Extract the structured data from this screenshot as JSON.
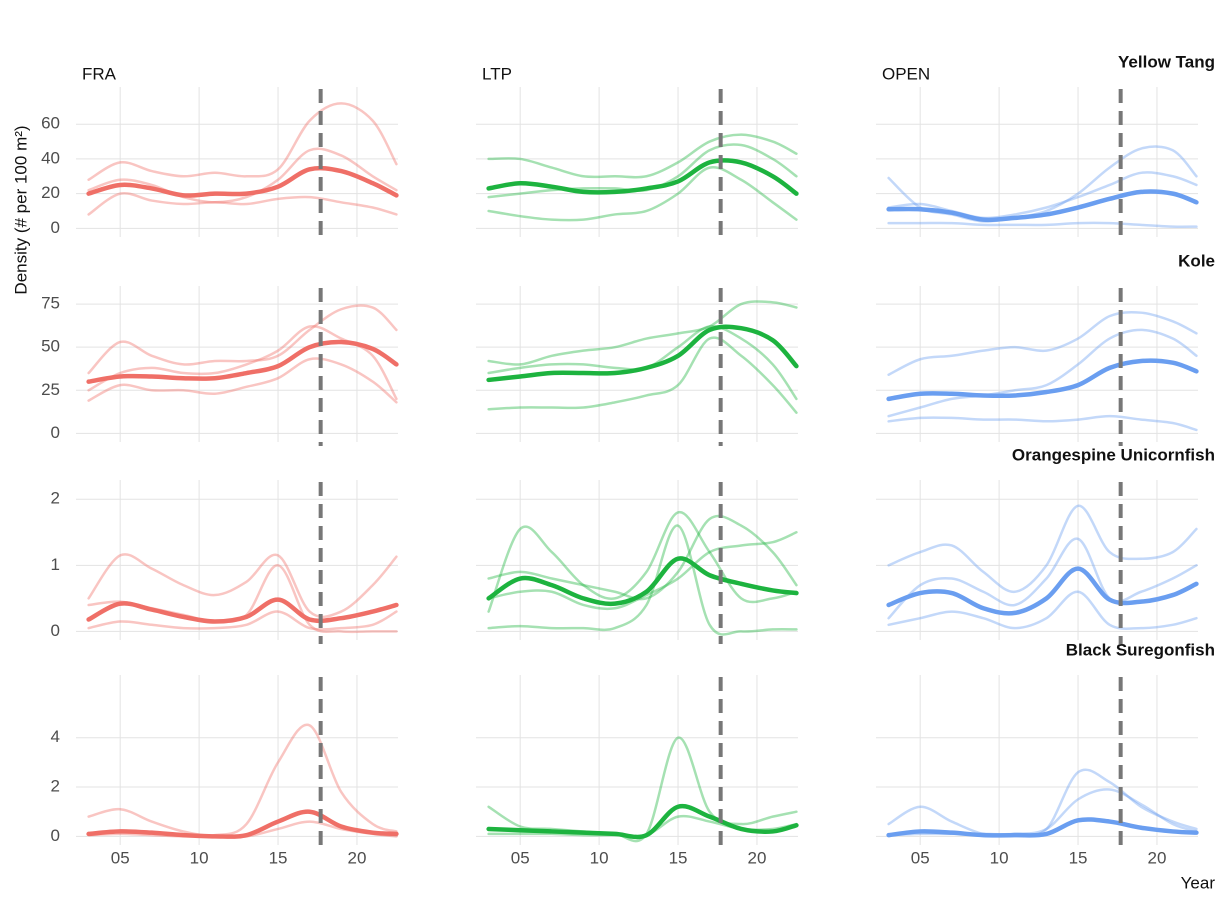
{
  "chart_data": [
    {
      "type": "line",
      "column": "FRA",
      "row": "Yellow Tang",
      "y_label": "Density (# per 100 m²)",
      "color": "#ef6f67",
      "x": [
        3,
        5,
        7,
        9,
        11,
        13,
        15,
        17,
        19,
        21,
        22.5
      ],
      "xlim": [
        2.2,
        22.6
      ],
      "xticks": [
        {
          "value": 5,
          "label": "05"
        },
        10,
        15,
        20
      ],
      "ylim": [
        -5,
        78
      ],
      "yticks": [
        0,
        20,
        40,
        60
      ],
      "vline": 17.7,
      "values": [
        20,
        25,
        23,
        19,
        20,
        20,
        24,
        34,
        33,
        26,
        19
      ],
      "series": [
        {
          "values": [
            28,
            38,
            33,
            30,
            32,
            30,
            34,
            62,
            72,
            62,
            37
          ]
        },
        {
          "values": [
            8,
            20,
            16,
            14,
            15,
            14,
            17,
            18,
            15,
            12,
            8
          ]
        },
        {
          "values": [
            22,
            28,
            25,
            18,
            15,
            18,
            28,
            45,
            42,
            30,
            22
          ]
        }
      ]
    },
    {
      "type": "line",
      "column": "LTP",
      "color": "#1db33f",
      "x": [
        3,
        5,
        7,
        9,
        11,
        13,
        15,
        17,
        19,
        21,
        22.5
      ],
      "xlim": [
        2.2,
        22.6
      ],
      "xticks": [
        {
          "value": 5,
          "label": "05"
        },
        10,
        15,
        20
      ],
      "ylim": [
        -5,
        78
      ],
      "yticks": [
        0,
        20,
        40,
        60
      ],
      "vline": 17.7,
      "values": [
        23,
        26,
        24,
        21,
        21,
        23,
        27,
        38,
        38,
        30,
        20
      ],
      "series": [
        {
          "values": [
            40,
            40,
            35,
            30,
            30,
            30,
            38,
            50,
            54,
            50,
            43
          ]
        },
        {
          "values": [
            10,
            7,
            5,
            5,
            8,
            10,
            20,
            35,
            28,
            15,
            5
          ]
        },
        {
          "values": [
            18,
            20,
            22,
            23,
            23,
            22,
            30,
            45,
            48,
            40,
            30
          ]
        }
      ]
    },
    {
      "type": "line",
      "column": "OPEN",
      "color": "#6a9ef0",
      "x": [
        3,
        5,
        7,
        9,
        11,
        13,
        15,
        17,
        19,
        21,
        22.5
      ],
      "xlim": [
        2.2,
        22.6
      ],
      "xticks": [
        {
          "value": 5,
          "label": "05"
        },
        10,
        15,
        20
      ],
      "ylim": [
        -5,
        78
      ],
      "yticks": [
        0,
        20,
        40,
        60
      ],
      "vline": 17.7,
      "values": [
        11,
        11,
        9,
        5,
        6,
        8,
        12,
        17,
        21,
        20,
        15
      ],
      "series": [
        {
          "values": [
            29,
            12,
            8,
            4,
            6,
            10,
            20,
            35,
            46,
            45,
            30
          ]
        },
        {
          "values": [
            3,
            3,
            3,
            2,
            2,
            2,
            3,
            3,
            2,
            1,
            1
          ]
        },
        {
          "values": [
            12,
            14,
            10,
            6,
            8,
            12,
            18,
            25,
            32,
            30,
            25
          ]
        }
      ]
    },
    {
      "type": "line",
      "row": "Kole",
      "color": "#ef6f67",
      "x": [
        3,
        5,
        7,
        9,
        11,
        13,
        15,
        17,
        19,
        21,
        22.5
      ],
      "xlim": [
        2.2,
        22.6
      ],
      "xticks": [
        {
          "value": 5,
          "label": "05"
        },
        10,
        15,
        20
      ],
      "ylim": [
        -5,
        82
      ],
      "yticks": [
        0,
        25,
        50,
        75
      ],
      "vline": 17.7,
      "values": [
        30,
        33,
        33,
        32,
        32,
        35,
        39,
        50,
        53,
        49,
        40
      ],
      "series": [
        {
          "values": [
            35,
            53,
            45,
            40,
            42,
            42,
            45,
            60,
            72,
            73,
            60
          ]
        },
        {
          "values": [
            19,
            28,
            25,
            25,
            23,
            27,
            32,
            43,
            40,
            30,
            18
          ]
        },
        {
          "values": [
            25,
            35,
            38,
            35,
            35,
            40,
            48,
            62,
            55,
            45,
            20
          ]
        }
      ]
    },
    {
      "type": "line",
      "color": "#1db33f",
      "x": [
        3,
        5,
        7,
        9,
        11,
        13,
        15,
        17,
        19,
        21,
        22.5
      ],
      "xlim": [
        2.2,
        22.6
      ],
      "xticks": [
        {
          "value": 5,
          "label": "05"
        },
        10,
        15,
        20
      ],
      "ylim": [
        -5,
        82
      ],
      "yticks": [
        0,
        25,
        50,
        75
      ],
      "vline": 17.7,
      "values": [
        31,
        33,
        35,
        35,
        35,
        38,
        45,
        60,
        61,
        54,
        39
      ],
      "series": [
        {
          "values": [
            42,
            40,
            45,
            48,
            50,
            55,
            58,
            62,
            75,
            76,
            73
          ]
        },
        {
          "values": [
            14,
            15,
            15,
            15,
            18,
            22,
            28,
            55,
            45,
            28,
            12
          ]
        },
        {
          "values": [
            35,
            38,
            40,
            40,
            38,
            38,
            50,
            62,
            55,
            40,
            20
          ]
        }
      ]
    },
    {
      "type": "line",
      "color": "#6a9ef0",
      "x": [
        3,
        5,
        7,
        9,
        11,
        13,
        15,
        17,
        19,
        21,
        22.5
      ],
      "xlim": [
        2.2,
        22.6
      ],
      "xticks": [
        {
          "value": 5,
          "label": "05"
        },
        10,
        15,
        20
      ],
      "ylim": [
        -5,
        82
      ],
      "yticks": [
        0,
        25,
        50,
        75
      ],
      "vline": 17.7,
      "values": [
        20,
        23,
        23,
        22,
        22,
        24,
        28,
        38,
        42,
        41,
        36
      ],
      "series": [
        {
          "values": [
            34,
            43,
            45,
            48,
            50,
            48,
            55,
            68,
            70,
            65,
            58
          ]
        },
        {
          "values": [
            7,
            9,
            9,
            8,
            8,
            7,
            8,
            10,
            8,
            6,
            2
          ]
        },
        {
          "values": [
            10,
            15,
            20,
            22,
            25,
            28,
            40,
            55,
            60,
            55,
            45
          ]
        }
      ]
    },
    {
      "type": "line",
      "row": "Orangespine Unicornfish",
      "color": "#ef6f67",
      "x": [
        3,
        5,
        7,
        9,
        11,
        13,
        15,
        17,
        19,
        21,
        22.5
      ],
      "xlim": [
        2.2,
        22.6
      ],
      "xticks": [
        {
          "value": 5,
          "label": "05"
        },
        10,
        15,
        20
      ],
      "ylim": [
        -0.13,
        2.2
      ],
      "yticks": [
        0,
        1,
        2
      ],
      "vline": 17.7,
      "values": [
        0.18,
        0.42,
        0.33,
        0.22,
        0.15,
        0.22,
        0.48,
        0.18,
        0.2,
        0.3,
        0.4
      ],
      "series": [
        {
          "values": [
            0.5,
            1.15,
            0.95,
            0.7,
            0.55,
            0.75,
            1.15,
            0.3,
            0.3,
            0.7,
            1.13
          ]
        },
        {
          "values": [
            0.05,
            0.15,
            0.1,
            0.05,
            0.05,
            0.1,
            0.3,
            0.05,
            0.05,
            0.1,
            0.3
          ]
        },
        {
          "values": [
            0.4,
            0.45,
            0.35,
            0.25,
            0.15,
            0.25,
            1.0,
            0.1,
            0,
            0,
            0
          ]
        }
      ]
    },
    {
      "type": "line",
      "color": "#1db33f",
      "x": [
        3,
        5,
        7,
        9,
        11,
        13,
        15,
        17,
        19,
        21,
        22.5
      ],
      "xlim": [
        2.2,
        22.6
      ],
      "xticks": [
        {
          "value": 5,
          "label": "05"
        },
        10,
        15,
        20
      ],
      "ylim": [
        -0.13,
        2.2
      ],
      "yticks": [
        0,
        1,
        2
      ],
      "vline": 17.7,
      "values": [
        0.5,
        0.8,
        0.7,
        0.5,
        0.42,
        0.6,
        1.1,
        0.85,
        0.72,
        0.62,
        0.58
      ],
      "series": [
        {
          "values": [
            0.3,
            1.55,
            1.2,
            0.7,
            0.5,
            0.9,
            1.8,
            1.2,
            0.5,
            0.5,
            0.6
          ]
        },
        {
          "values": [
            0.05,
            0.08,
            0.05,
            0.05,
            0.05,
            0.4,
            1.6,
            0.1,
            0,
            0.03,
            0.03
          ]
        },
        {
          "values": [
            0.8,
            0.9,
            0.8,
            0.7,
            0.6,
            0.5,
            0.9,
            1.7,
            1.6,
            1.2,
            0.7
          ]
        },
        {
          "values": [
            0.5,
            0.6,
            0.6,
            0.4,
            0.35,
            0.55,
            0.8,
            1.2,
            1.3,
            1.35,
            1.5
          ]
        }
      ]
    },
    {
      "type": "line",
      "color": "#6a9ef0",
      "x": [
        3,
        5,
        7,
        9,
        11,
        13,
        15,
        17,
        19,
        21,
        22.5
      ],
      "xlim": [
        2.2,
        22.6
      ],
      "xticks": [
        {
          "value": 5,
          "label": "05"
        },
        10,
        15,
        20
      ],
      "ylim": [
        -0.13,
        2.2
      ],
      "yticks": [
        0,
        1,
        2
      ],
      "vline": 17.7,
      "values": [
        0.4,
        0.58,
        0.58,
        0.35,
        0.28,
        0.5,
        0.95,
        0.48,
        0.45,
        0.55,
        0.72
      ],
      "series": [
        {
          "values": [
            1.0,
            1.2,
            1.3,
            0.9,
            0.6,
            1.0,
            1.9,
            1.2,
            1.1,
            1.2,
            1.55
          ]
        },
        {
          "values": [
            0.1,
            0.2,
            0.3,
            0.2,
            0.05,
            0.2,
            0.6,
            0.1,
            0.05,
            0.1,
            0.2
          ]
        },
        {
          "values": [
            0.2,
            0.7,
            0.8,
            0.6,
            0.4,
            0.8,
            1.4,
            0.5,
            0.6,
            0.8,
            1.0
          ]
        }
      ]
    },
    {
      "type": "line",
      "row": "Black Suregonfish",
      "color": "#ef6f67",
      "x": [
        3,
        5,
        7,
        9,
        11,
        13,
        15,
        17,
        19,
        21,
        22.5
      ],
      "xlim": [
        2.2,
        22.6
      ],
      "xticks": [
        {
          "value": 5,
          "label": "05"
        },
        10,
        15,
        20
      ],
      "ylim": [
        -0.35,
        6.3
      ],
      "yticks": [
        0,
        2,
        4
      ],
      "vline": 17.7,
      "values": [
        0.1,
        0.2,
        0.15,
        0.05,
        0,
        0.05,
        0.6,
        1.0,
        0.4,
        0.15,
        0.1
      ],
      "series": [
        {
          "values": [
            0.8,
            1.1,
            0.6,
            0.2,
            0.05,
            0.5,
            3.0,
            4.5,
            1.8,
            0.5,
            0.2
          ]
        },
        {
          "values": [
            0.05,
            0.1,
            0.05,
            0,
            0,
            0,
            0.3,
            0.6,
            0.3,
            0.1,
            0
          ]
        }
      ]
    },
    {
      "type": "line",
      "color": "#1db33f",
      "x": [
        3,
        5,
        7,
        9,
        11,
        13,
        15,
        17,
        19,
        21,
        22.5
      ],
      "xlim": [
        2.2,
        22.6
      ],
      "xticks": [
        {
          "value": 5,
          "label": "05"
        },
        10,
        15,
        20
      ],
      "ylim": [
        -0.35,
        6.3
      ],
      "yticks": [
        0,
        2,
        4
      ],
      "vline": 17.7,
      "values": [
        0.3,
        0.25,
        0.2,
        0.15,
        0.1,
        0.05,
        1.2,
        0.8,
        0.3,
        0.2,
        0.45
      ],
      "series": [
        {
          "values": [
            1.2,
            0.4,
            0.3,
            0.2,
            0.1,
            0.1,
            4.0,
            1.0,
            0.5,
            0.8,
            1.0
          ]
        },
        {
          "values": [
            0.1,
            0.1,
            0.1,
            0.05,
            0.05,
            0.05,
            0.8,
            0.6,
            0.3,
            0.3,
            0.5
          ]
        }
      ]
    },
    {
      "type": "line",
      "x_label": "Year",
      "color": "#6a9ef0",
      "x": [
        3,
        5,
        7,
        9,
        11,
        13,
        15,
        17,
        19,
        21,
        22.5
      ],
      "xlim": [
        2.2,
        22.6
      ],
      "xticks": [
        {
          "value": 5,
          "label": "05"
        },
        10,
        15,
        20
      ],
      "ylim": [
        -0.35,
        6.3
      ],
      "yticks": [
        0,
        2,
        4
      ],
      "vline": 17.7,
      "values": [
        0.05,
        0.2,
        0.15,
        0.05,
        0.05,
        0.1,
        0.65,
        0.6,
        0.35,
        0.2,
        0.15
      ],
      "series": [
        {
          "values": [
            0.5,
            1.2,
            0.6,
            0.1,
            0.1,
            0.3,
            2.6,
            2.2,
            1.2,
            0.6,
            0.3
          ]
        },
        {
          "values": [
            0.05,
            0.1,
            0.1,
            0.1,
            0.1,
            0.3,
            1.5,
            1.9,
            1.3,
            0.5,
            0.2
          ]
        }
      ]
    }
  ]
}
